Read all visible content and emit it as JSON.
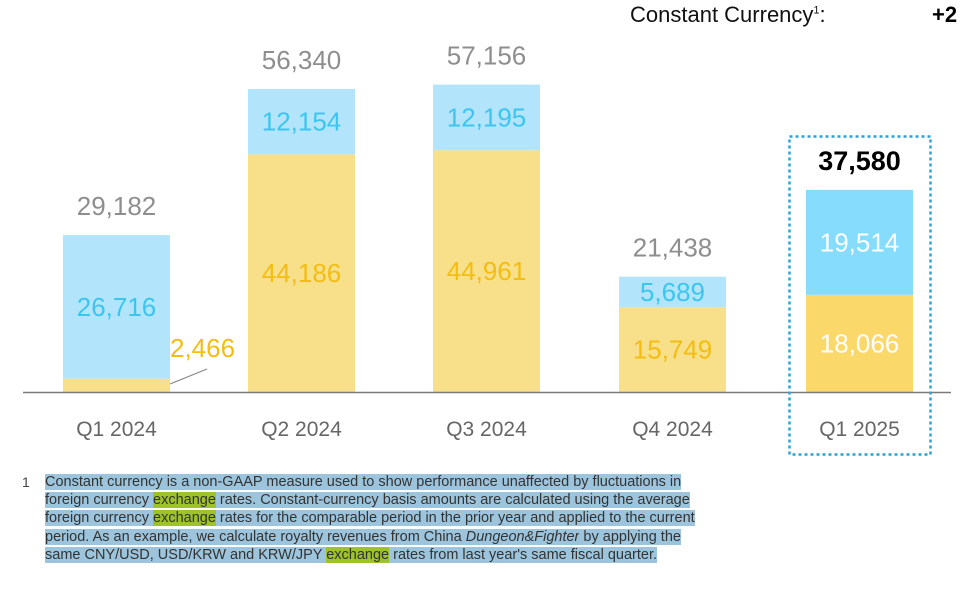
{
  "header": {
    "label": "Constant Currency",
    "label_sup": "1",
    "label_colon": ":",
    "value": "+2"
  },
  "colors": {
    "top_segment": "#b2e5fb",
    "top_segment_text": "#3cc6ef",
    "bottom_segment": "#f8df8a",
    "bottom_segment_text": "#f3bd12",
    "highlight_top_segment": "#86dcfc",
    "highlight_bottom_segment": "#fbd86a",
    "highlight_text": "#ffffff",
    "total_text": "#8e8e8e",
    "highlight_total_text": "#000000",
    "axis": "#7a7a7a",
    "highlight_box": "#29a3d6",
    "selection": "#9cc4dc",
    "search_hit": "#9ec22a"
  },
  "chart_data": {
    "type": "bar",
    "stacked": true,
    "categories": [
      "Q1 2024",
      "Q2 2024",
      "Q3 2024",
      "Q4 2024",
      "Q1 2025"
    ],
    "series": [
      {
        "values": [
          2466,
          44186,
          44961,
          15749,
          18066
        ]
      },
      {
        "values": [
          26716,
          12154,
          12195,
          5689,
          19514
        ]
      }
    ],
    "value_labels": {
      "bottom": [
        "2,466",
        "44,186",
        "44,961",
        "15,749",
        "18,066"
      ],
      "top": [
        "26,716",
        "12,154",
        "12,195",
        "5,689",
        "19,514"
      ]
    },
    "totals": [
      29182,
      56340,
      57156,
      21438,
      37580
    ],
    "total_labels": [
      "29,182",
      "56,340",
      "57,156",
      "21,438",
      "37,580"
    ],
    "highlighted_category": "Q1 2025",
    "ylim": [
      0,
      60000
    ],
    "grid": false,
    "legend": "none"
  },
  "footnote": {
    "marker": "1",
    "lines": [
      [
        {
          "t": "Constant currency is a non-GAAP measure used to show performance unaffected by fluctuations in"
        }
      ],
      [
        {
          "t": "foreign currency "
        },
        {
          "t": "exchange",
          "hl": true
        },
        {
          "t": " rates. Constant-currency basis amounts are calculated using the average"
        }
      ],
      [
        {
          "t": "foreign currency "
        },
        {
          "t": "exchange",
          "hl": true
        },
        {
          "t": " rates for the comparable period in the prior year and applied to the current"
        }
      ],
      [
        {
          "t": "period. As an example, we calculate royalty revenues from China "
        },
        {
          "t": "Dungeon&Fighter",
          "it": true
        },
        {
          "t": " by applying the"
        }
      ],
      [
        {
          "t": "same CNY/USD, USD/KRW and KRW/JPY "
        },
        {
          "t": "exchange",
          "hl": true
        },
        {
          "t": " rates from last year's same fiscal quarter."
        }
      ]
    ]
  }
}
